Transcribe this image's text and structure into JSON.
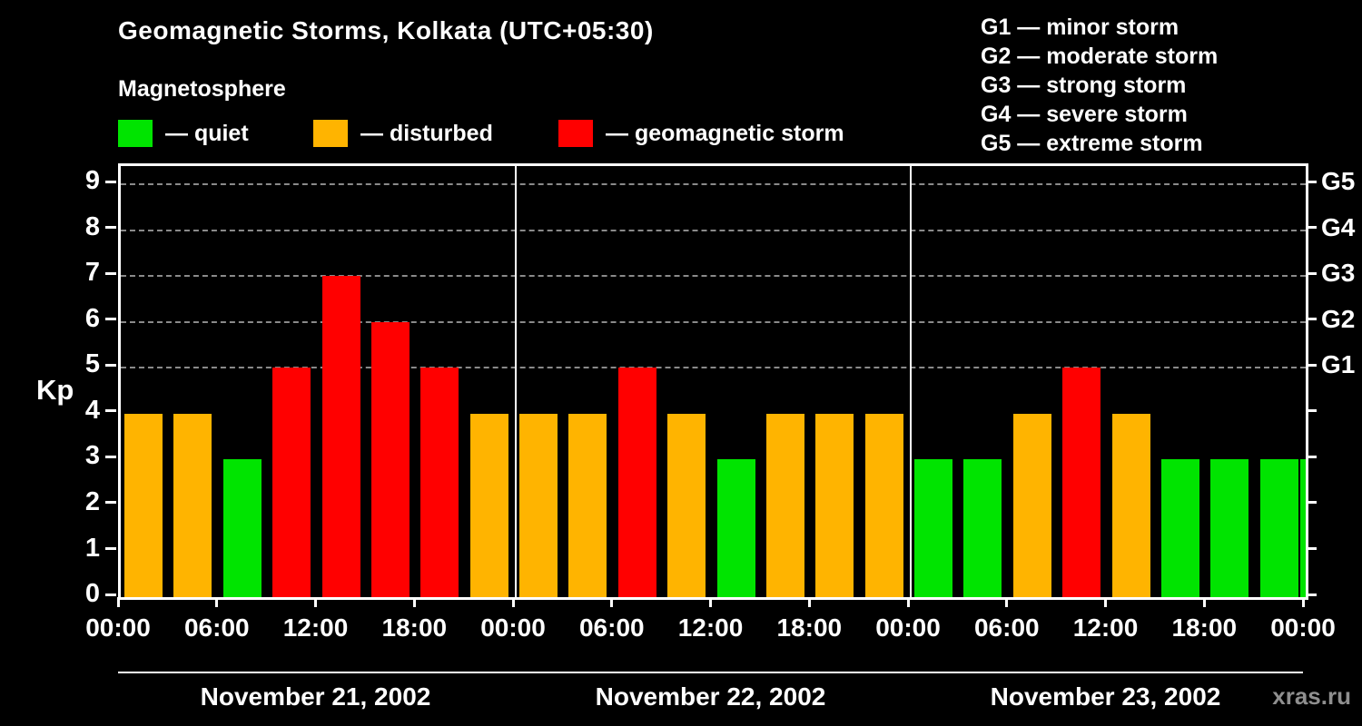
{
  "header": {
    "title": "Geomagnetic Storms, Kolkata (UTC+05:30)",
    "subtitle": "Magnetosphere"
  },
  "legend": {
    "items": [
      {
        "key": "quiet",
        "label": "— quiet",
        "color": "#00e400"
      },
      {
        "key": "disturbed",
        "label": "— disturbed",
        "color": "#ffb400"
      },
      {
        "key": "storm",
        "label": "— geomagnetic storm",
        "color": "#ff0000"
      }
    ]
  },
  "storm_scale": {
    "items": [
      "G1 — minor storm",
      "G2 — moderate storm",
      "G3 — strong storm",
      "G4 — severe storm",
      "G5 — extreme storm"
    ]
  },
  "watermark": "xras.ru",
  "chart_data": {
    "type": "bar",
    "title": "Geomagnetic Storms, Kolkata (UTC+05:30)",
    "ylabel": "Kp",
    "ylim": [
      0,
      9.4
    ],
    "yticks": [
      0,
      1,
      2,
      3,
      4,
      5,
      6,
      7,
      8,
      9
    ],
    "dashed_gridlines_at": [
      5,
      6,
      7,
      8,
      9
    ],
    "right_axis": [
      {
        "value": 9,
        "label": "G5"
      },
      {
        "value": 8,
        "label": "G4"
      },
      {
        "value": 7,
        "label": "G3"
      },
      {
        "value": 6,
        "label": "G2"
      },
      {
        "value": 5,
        "label": "G1"
      }
    ],
    "x_tick_labels": [
      "00:00",
      "06:00",
      "12:00",
      "18:00",
      "00:00",
      "06:00",
      "12:00",
      "18:00",
      "00:00",
      "06:00",
      "12:00",
      "18:00",
      "00:00"
    ],
    "days": [
      {
        "date": "November 21, 2002",
        "kp_values": [
          4,
          4,
          3,
          5,
          7,
          6,
          5,
          4
        ]
      },
      {
        "date": "November 22, 2002",
        "kp_values": [
          4,
          4,
          5,
          4,
          3,
          4,
          4,
          4
        ]
      },
      {
        "date": "November 23, 2002",
        "kp_values": [
          3,
          3,
          4,
          5,
          4,
          3,
          3,
          3
        ]
      }
    ],
    "next_day_partial_kp": 3,
    "color_rules": {
      "quiet_max_kp": 3,
      "disturbed_kp": 4,
      "storm_min_kp": 5
    },
    "colors": {
      "quiet": "#00e400",
      "disturbed": "#ffb400",
      "storm": "#ff0000"
    },
    "bars_per_day": 8,
    "hours_per_bar": 3,
    "legend_position": "top",
    "grid": "dashed-horizontal-G-levels-only",
    "background": "#000000"
  }
}
